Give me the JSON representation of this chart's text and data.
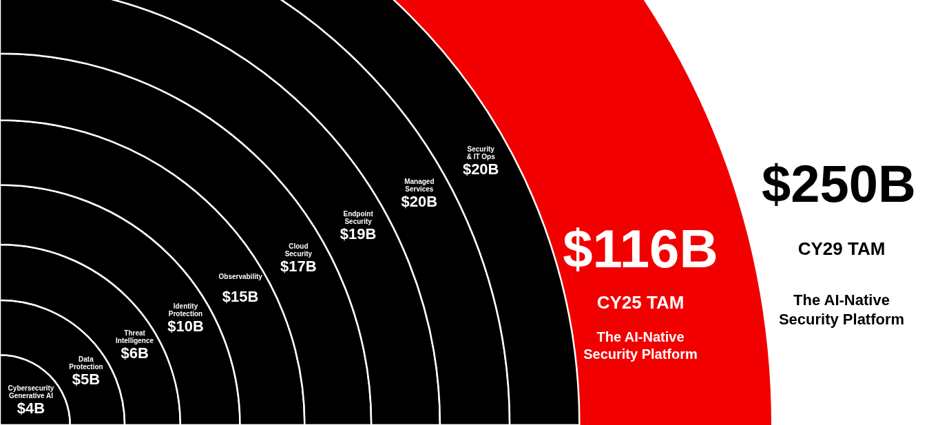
{
  "chart_data": {
    "type": "other",
    "categories": [
      "Cybersecurity\nGenerative AI",
      "Data\nProtection",
      "Threat\nIntelligence",
      "Identity\nProtection",
      "Observability",
      "Cloud\nSecurity",
      "Endpoint\nSecurity",
      "Managed\nServices",
      "Security\n& IT Ops"
    ],
    "values": [
      4,
      5,
      6,
      10,
      15,
      17,
      19,
      20,
      20
    ],
    "value_labels": [
      "$4B",
      "$5B",
      "$6B",
      "$10B",
      "$15B",
      "$17B",
      "$19B",
      "$20B",
      "$20B"
    ],
    "colors": [
      "#000000",
      "#000000",
      "#000000",
      "#000000",
      "#000000",
      "#000000",
      "#000000",
      "#000000",
      "#000000"
    ],
    "annotations": [
      "$116B",
      "CY25 TAM",
      "The AI-Native\nSecurity Platform",
      "$250B",
      "CY29 TAM",
      "The AI-Native\nSecurity Platform"
    ]
  }
}
